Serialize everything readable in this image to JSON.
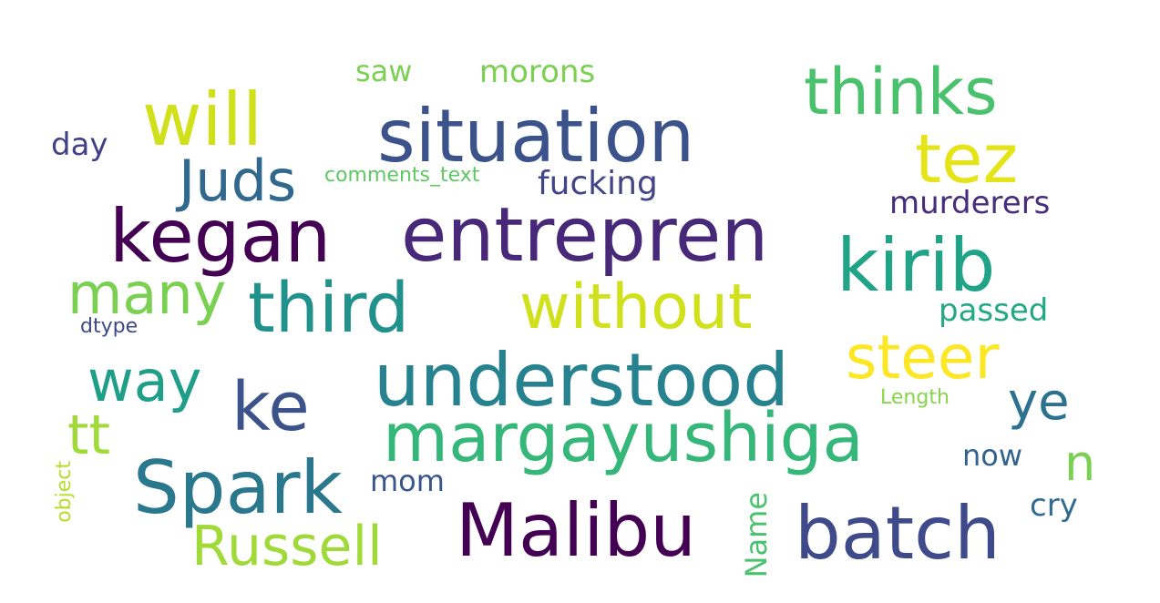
{
  "words": [
    {
      "text": "situation",
      "color": "#3b528b"
    },
    {
      "text": "entrepren",
      "color": "#482878"
    },
    {
      "text": "kegan",
      "color": "#440154"
    },
    {
      "text": "Malibu",
      "color": "#440154"
    },
    {
      "text": "understood",
      "color": "#26828e"
    },
    {
      "text": "margayushiga",
      "color": "#35b779"
    },
    {
      "text": "batch",
      "color": "#3e4a89"
    },
    {
      "text": "Spark",
      "color": "#2a788e"
    },
    {
      "text": "third",
      "color": "#21918c"
    },
    {
      "text": "without",
      "color": "#d0e11c"
    },
    {
      "text": "kirib",
      "color": "#20a386"
    },
    {
      "text": "will",
      "color": "#d0e11c"
    },
    {
      "text": "thinks",
      "color": "#4ac16d"
    },
    {
      "text": "tez",
      "color": "#e5e419"
    },
    {
      "text": "ke",
      "color": "#3b528b"
    },
    {
      "text": "steer",
      "color": "#fde725"
    },
    {
      "text": "Juds",
      "color": "#31688e"
    },
    {
      "text": "many",
      "color": "#7ad151"
    },
    {
      "text": "way",
      "color": "#1f9e89"
    },
    {
      "text": "Russell",
      "color": "#a0da39"
    },
    {
      "text": "ye",
      "color": "#2c728e"
    },
    {
      "text": "tt",
      "color": "#a0da39"
    },
    {
      "text": "n",
      "color": "#7ad151"
    },
    {
      "text": "murderers",
      "color": "#472d7b"
    },
    {
      "text": "fucking",
      "color": "#414487"
    },
    {
      "text": "passed",
      "color": "#22a884"
    },
    {
      "text": "morons",
      "color": "#7ad151"
    },
    {
      "text": "saw",
      "color": "#7ad151"
    },
    {
      "text": "day",
      "color": "#424086"
    },
    {
      "text": "now",
      "color": "#33638d"
    },
    {
      "text": "mom",
      "color": "#39568c"
    },
    {
      "text": "cry",
      "color": "#2f6c8e"
    },
    {
      "text": "Name",
      "color": "#4ac16d"
    },
    {
      "text": "comments_text",
      "color": "#5ec962"
    },
    {
      "text": "Length",
      "color": "#86d549"
    },
    {
      "text": "dtype",
      "color": "#3e4989"
    },
    {
      "text": "object",
      "color": "#b5de2b"
    }
  ]
}
